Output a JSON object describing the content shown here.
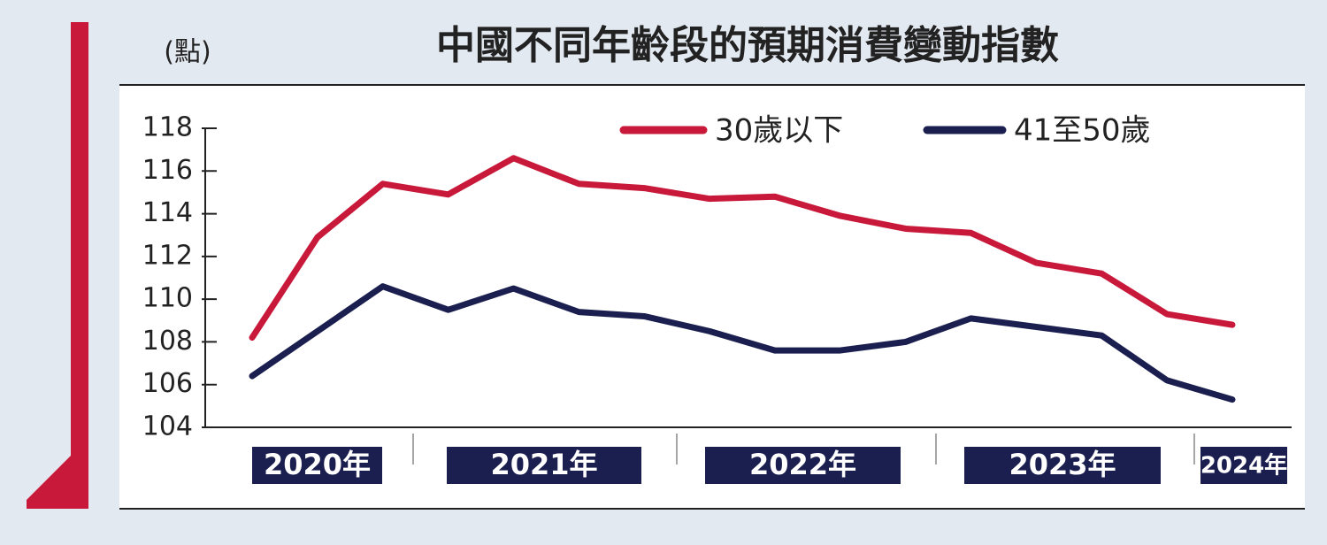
{
  "chart_data": {
    "type": "line",
    "title": "中國不同年齡段的預期消費變動指數",
    "y_label": "(點)",
    "categories": [
      null,
      null,
      null,
      null,
      null,
      null,
      null,
      null,
      null,
      null,
      null,
      null,
      null,
      null,
      null,
      null
    ],
    "x_groups": [
      "2020年",
      "2021年",
      "2022年",
      "2023年",
      "2024年"
    ],
    "series": [
      {
        "name": "30歲以下",
        "color": "#c8193a",
        "values": [
          108.2,
          112.9,
          115.4,
          114.9,
          116.6,
          115.4,
          115.2,
          114.7,
          114.8,
          113.9,
          113.3,
          113.1,
          111.7,
          111.2,
          109.3,
          108.8
        ]
      },
      {
        "name": "41至50歲",
        "color": "#1b1f4f",
        "values": [
          106.4,
          108.5,
          110.6,
          109.5,
          110.5,
          109.4,
          109.2,
          108.5,
          107.6,
          107.6,
          108.0,
          109.1,
          108.7,
          108.3,
          106.2,
          105.3
        ]
      }
    ],
    "ylim": [
      104,
      118
    ],
    "yticks": [
      104,
      106,
      108,
      110,
      112,
      114,
      116,
      118
    ],
    "grid": false,
    "legend": "top-right"
  }
}
